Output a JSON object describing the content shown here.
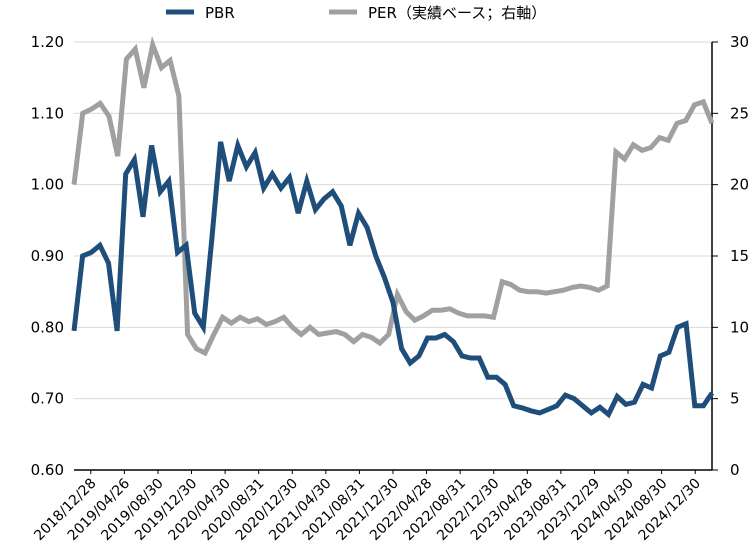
{
  "chart_data": {
    "type": "line",
    "title": "",
    "xlabel": "",
    "ylabel": "",
    "y_left": {
      "lim": [
        0.6,
        1.2
      ],
      "ticks": [
        "0.60",
        "0.70",
        "0.80",
        "0.90",
        "1.00",
        "1.10",
        "1.20"
      ]
    },
    "y_right": {
      "lim": [
        0,
        30
      ],
      "ticks": [
        "0",
        "5",
        "10",
        "15",
        "20",
        "25",
        "30"
      ]
    },
    "x_tick_labels": [
      "2018/12/28",
      "2019/04/26",
      "2019/08/30",
      "2019/12/30",
      "2020/04/30",
      "2020/08/31",
      "2020/12/30",
      "2021/04/30",
      "2021/08/31",
      "2021/12/30",
      "2022/04/28",
      "2022/08/31",
      "2022/12/30",
      "2023/04/28",
      "2023/08/31",
      "2023/12/29",
      "2024/04/30",
      "2024/08/30",
      "2024/12/30"
    ],
    "legend_position": "top",
    "grid": "horizontal",
    "series": [
      {
        "name": "PBR",
        "axis": "left",
        "color": "#1f4e7a",
        "values": [
          0.795,
          0.9,
          0.905,
          0.915,
          0.89,
          0.795,
          1.015,
          1.035,
          0.955,
          1.055,
          0.99,
          1.005,
          0.905,
          0.915,
          0.82,
          0.8,
          0.925,
          1.06,
          1.005,
          1.055,
          1.025,
          1.045,
          0.995,
          1.015,
          0.995,
          1.01,
          0.96,
          1.005,
          0.965,
          0.98,
          0.99,
          0.97,
          0.915,
          0.96,
          0.94,
          0.9,
          0.87,
          0.835,
          0.77,
          0.75,
          0.76,
          0.785,
          0.785,
          0.79,
          0.78,
          0.76,
          0.757,
          0.757,
          0.73,
          0.73,
          0.72,
          0.69,
          0.687,
          0.683,
          0.68,
          0.685,
          0.69,
          0.705,
          0.7,
          0.69,
          0.68,
          0.688,
          0.678,
          0.703,
          0.692,
          0.695,
          0.72,
          0.715,
          0.76,
          0.765,
          0.8,
          0.805,
          0.69,
          0.69,
          0.708
        ]
      },
      {
        "name": "PER（実績ベース；右軸）",
        "axis": "right",
        "color": "#a0a0a0",
        "values": [
          20,
          25,
          25.3,
          25.7,
          24.8,
          22,
          28.8,
          29.5,
          26.8,
          29.8,
          28.2,
          28.7,
          26.2,
          9.5,
          8.5,
          8.2,
          9.5,
          10.7,
          10.3,
          10.7,
          10.4,
          10.6,
          10.2,
          10.4,
          10.7,
          10,
          9.5,
          10,
          9.5,
          9.6,
          9.7,
          9.5,
          9,
          9.5,
          9.3,
          8.9,
          9.5,
          12.3,
          11.1,
          10.5,
          10.8,
          11.2,
          11.2,
          11.3,
          11,
          10.8,
          10.8,
          10.8,
          10.7,
          13.2,
          13,
          12.6,
          12.5,
          12.5,
          12.4,
          12.5,
          12.6,
          12.8,
          12.9,
          12.8,
          12.6,
          12.9,
          22.3,
          21.8,
          22.8,
          22.4,
          22.6,
          23.3,
          23.1,
          24.3,
          24.5,
          25.6,
          25.8,
          24.3
        ]
      }
    ]
  }
}
